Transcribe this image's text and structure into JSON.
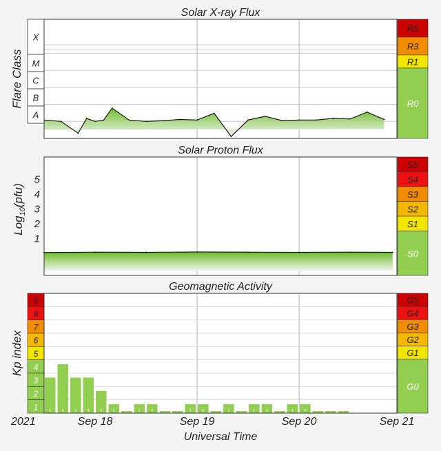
{
  "panels": {
    "xray": {
      "title": "Solar X-ray Flux",
      "ylabel": "Flare Class",
      "classes": [
        "X",
        "M",
        "C",
        "B",
        "A"
      ],
      "scale": [
        {
          "label": "R5",
          "color": "#cc0000"
        },
        {
          "label": "R3",
          "color": "#f28c00"
        },
        {
          "label": "R1",
          "color": "#f2e600"
        },
        {
          "label": "R0",
          "color": "#92cf50"
        }
      ]
    },
    "proton": {
      "title": "Solar Proton Flux",
      "ylabel_main": "Log",
      "ylabel_sub": "10",
      "ylabel_tail": "(pfu)",
      "ticks": [
        "5",
        "4",
        "3",
        "2",
        "1"
      ],
      "scale": [
        {
          "label": "S5",
          "color": "#cc0000"
        },
        {
          "label": "S4",
          "color": "#ee1111"
        },
        {
          "label": "S3",
          "color": "#f28c00"
        },
        {
          "label": "S2",
          "color": "#f5b800"
        },
        {
          "label": "S1",
          "color": "#f2e600"
        },
        {
          "label": "S0",
          "color": "#92cf50"
        }
      ]
    },
    "kp": {
      "title": "Geomagnetic Activity",
      "ylabel": "Kp index",
      "levels": [
        {
          "label": "9",
          "color": "#cc0000"
        },
        {
          "label": "8",
          "color": "#ee1111"
        },
        {
          "label": "7",
          "color": "#f28c00"
        },
        {
          "label": "6",
          "color": "#f5b800"
        },
        {
          "label": "5",
          "color": "#f2e600"
        },
        {
          "label": "4",
          "color": "#92cf50"
        },
        {
          "label": "3",
          "color": "#92cf50"
        },
        {
          "label": "2",
          "color": "#92cf50"
        },
        {
          "label": "1",
          "color": "#92cf50"
        }
      ],
      "scale": [
        {
          "label": "G5",
          "color": "#cc0000"
        },
        {
          "label": "G4",
          "color": "#ee1111"
        },
        {
          "label": "G3",
          "color": "#f28c00"
        },
        {
          "label": "G2",
          "color": "#f5b800"
        },
        {
          "label": "G1",
          "color": "#f2e600"
        },
        {
          "label": "G0",
          "color": "#92cf50"
        }
      ]
    }
  },
  "xaxis": {
    "year": "2021",
    "label": "Universal Time",
    "ticks": [
      "Sep 18",
      "Sep 19",
      "Sep 20",
      "Sep 21"
    ]
  },
  "chart_data": [
    {
      "type": "line",
      "title": "Solar X-ray Flux",
      "ylabel": "Flare Class",
      "yscale": "log",
      "ylim": [
        1e-09,
        0.01
      ],
      "x": [
        "2021-09-17 12:00",
        "2021-09-17 16:00",
        "2021-09-17 20:00",
        "2021-09-17 22:00",
        "2021-09-18 00:00",
        "2021-09-18 02:00",
        "2021-09-18 04:00",
        "2021-09-18 08:00",
        "2021-09-18 12:00",
        "2021-09-18 16:00",
        "2021-09-18 20:00",
        "2021-09-19 00:00",
        "2021-09-19 04:00",
        "2021-09-19 08:00",
        "2021-09-19 12:00",
        "2021-09-19 16:00",
        "2021-09-19 20:00",
        "2021-09-20 00:00",
        "2021-09-20 04:00",
        "2021-09-20 08:00",
        "2021-09-20 12:00",
        "2021-09-20 16:00",
        "2021-09-20 20:00"
      ],
      "values": [
        1.2e-08,
        1e-08,
        2e-09,
        1.5e-08,
        1e-08,
        1.2e-08,
        6e-08,
        1.2e-08,
        1e-08,
        1.1e-08,
        1.3e-08,
        1.2e-08,
        3e-08,
        1.3e-09,
        1.2e-08,
        2e-08,
        1.1e-08,
        1.2e-08,
        1.2e-08,
        1.5e-08,
        1.4e-08,
        3.5e-08,
        1.3e-08
      ],
      "grid": true
    },
    {
      "type": "line",
      "title": "Solar Proton Flux",
      "ylabel": "Log10(pfu)",
      "ylim": [
        -1,
        6
      ],
      "x": [
        "2021-09-17 12:00",
        "2021-09-18 00:00",
        "2021-09-18 12:00",
        "2021-09-19 00:00",
        "2021-09-19 12:00",
        "2021-09-20 00:00",
        "2021-09-20 12:00",
        "2021-09-20 22:00"
      ],
      "values": [
        0.05,
        0.07,
        0.06,
        0.08,
        0.07,
        0.06,
        0.07,
        0.06
      ],
      "grid": true
    },
    {
      "type": "bar",
      "title": "Geomagnetic Activity",
      "ylabel": "Kp index",
      "ylim": [
        0,
        9
      ],
      "x": [
        "2021-09-17 12:00",
        "2021-09-17 15:00",
        "2021-09-17 18:00",
        "2021-09-17 21:00",
        "2021-09-18 00:00",
        "2021-09-18 03:00",
        "2021-09-18 06:00",
        "2021-09-18 09:00",
        "2021-09-18 12:00",
        "2021-09-18 15:00",
        "2021-09-18 18:00",
        "2021-09-18 21:00",
        "2021-09-19 00:00",
        "2021-09-19 03:00",
        "2021-09-19 06:00",
        "2021-09-19 09:00",
        "2021-09-19 12:00",
        "2021-09-19 15:00",
        "2021-09-19 18:00",
        "2021-09-19 21:00",
        "2021-09-20 00:00",
        "2021-09-20 03:00",
        "2021-09-20 06:00",
        "2021-09-20 09:00"
      ],
      "values": [
        2.67,
        3.67,
        2.67,
        2.67,
        1.67,
        0.67,
        0.0,
        0.67,
        0.67,
        0.0,
        0.0,
        0.67,
        0.67,
        0.0,
        0.67,
        0.0,
        0.67,
        0.67,
        0.0,
        0.67,
        0.67,
        0.0,
        0.0,
        0.0
      ],
      "grid": true
    }
  ]
}
